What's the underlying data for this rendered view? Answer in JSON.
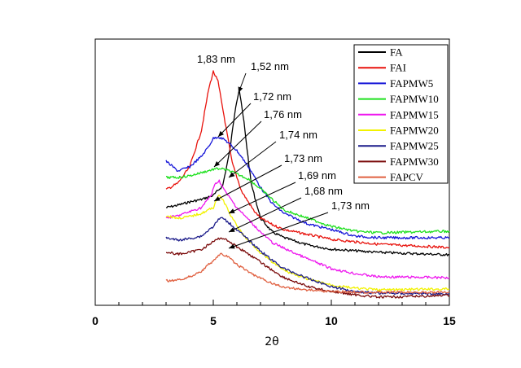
{
  "chart_data": {
    "type": "line",
    "title": "",
    "xlabel": "2θ",
    "ylabel": "",
    "xlim": [
      0,
      15
    ],
    "x_ticks": [
      "0",
      "5",
      "10",
      "15"
    ],
    "y_ticks_visible": false,
    "grid": false,
    "legend_position": "top-right",
    "series": [
      {
        "name": "FA",
        "color": "#000000",
        "points": [
          [
            3.0,
            255
          ],
          [
            3.5,
            252
          ],
          [
            4.0,
            248
          ],
          [
            4.5,
            245
          ],
          [
            5.0,
            240
          ],
          [
            5.4,
            228
          ],
          [
            5.7,
            185
          ],
          [
            5.95,
            130
          ],
          [
            6.1,
            110
          ],
          [
            6.3,
            150
          ],
          [
            6.6,
            225
          ],
          [
            7.0,
            268
          ],
          [
            7.5,
            285
          ],
          [
            8.0,
            292
          ],
          [
            9.0,
            301
          ],
          [
            10.0,
            306
          ],
          [
            12.0,
            310
          ],
          [
            15.0,
            313
          ]
        ]
      },
      {
        "name": "FAI",
        "color": "#e8120c",
        "points": [
          [
            3.0,
            233
          ],
          [
            3.5,
            225
          ],
          [
            4.0,
            205
          ],
          [
            4.5,
            160
          ],
          [
            4.8,
            110
          ],
          [
            5.0,
            88
          ],
          [
            5.2,
            100
          ],
          [
            5.5,
            150
          ],
          [
            5.8,
            200
          ],
          [
            6.2,
            235
          ],
          [
            6.7,
            258
          ],
          [
            7.0,
            268
          ],
          [
            7.5,
            276
          ],
          [
            8.0,
            282
          ],
          [
            9.0,
            288
          ],
          [
            10.0,
            294
          ],
          [
            12.0,
            300
          ],
          [
            15.0,
            304
          ]
        ]
      },
      {
        "name": "FAPMW5",
        "color": "#1515d8",
        "points": [
          [
            3.0,
            198
          ],
          [
            3.5,
            210
          ],
          [
            4.0,
            205
          ],
          [
            4.5,
            192
          ],
          [
            4.8,
            180
          ],
          [
            5.0,
            170
          ],
          [
            5.2,
            168
          ],
          [
            5.5,
            172
          ],
          [
            6.0,
            185
          ],
          [
            6.5,
            205
          ],
          [
            7.0,
            230
          ],
          [
            7.5,
            250
          ],
          [
            8.0,
            262
          ],
          [
            9.0,
            275
          ],
          [
            10.0,
            282
          ],
          [
            11.0,
            290
          ],
          [
            12.0,
            292
          ],
          [
            15.0,
            292
          ]
        ]
      },
      {
        "name": "FAPMW10",
        "color": "#1ee01e",
        "points": [
          [
            3.0,
            218
          ],
          [
            3.5,
            218
          ],
          [
            4.0,
            216
          ],
          [
            4.5,
            212
          ],
          [
            5.0,
            208
          ],
          [
            5.3,
            207
          ],
          [
            5.7,
            210
          ],
          [
            6.5,
            220
          ],
          [
            7.0,
            232
          ],
          [
            7.5,
            245
          ],
          [
            8.0,
            258
          ],
          [
            9.0,
            268
          ],
          [
            10.0,
            278
          ],
          [
            11.0,
            284
          ],
          [
            12.0,
            286
          ],
          [
            15.0,
            284
          ]
        ]
      },
      {
        "name": "FAPMW15",
        "color": "#ee16ee",
        "points": [
          [
            3.0,
            268
          ],
          [
            3.5,
            265
          ],
          [
            4.0,
            260
          ],
          [
            4.5,
            255
          ],
          [
            4.9,
            240
          ],
          [
            5.1,
            225
          ],
          [
            5.25,
            222
          ],
          [
            5.5,
            235
          ],
          [
            6.0,
            255
          ],
          [
            6.5,
            270
          ],
          [
            7.0,
            285
          ],
          [
            7.5,
            298
          ],
          [
            8.0,
            305
          ],
          [
            9.0,
            318
          ],
          [
            10.0,
            330
          ],
          [
            11.0,
            336
          ],
          [
            12.0,
            340
          ],
          [
            15.0,
            341
          ]
        ]
      },
      {
        "name": "FAPMW20",
        "color": "#f2f200",
        "points": [
          [
            3.0,
            265
          ],
          [
            3.5,
            268
          ],
          [
            4.0,
            266
          ],
          [
            4.5,
            262
          ],
          [
            5.0,
            255
          ],
          [
            5.2,
            240
          ],
          [
            5.4,
            245
          ],
          [
            5.8,
            268
          ],
          [
            6.3,
            290
          ],
          [
            7.0,
            310
          ],
          [
            7.5,
            322
          ],
          [
            8.0,
            332
          ],
          [
            9.0,
            343
          ],
          [
            10.0,
            350
          ],
          [
            11.0,
            354
          ],
          [
            12.0,
            356
          ],
          [
            15.0,
            355
          ]
        ]
      },
      {
        "name": "FAPMW25",
        "color": "#1c1c8a",
        "points": [
          [
            3.0,
            292
          ],
          [
            3.5,
            295
          ],
          [
            4.0,
            293
          ],
          [
            4.5,
            290
          ],
          [
            5.0,
            278
          ],
          [
            5.3,
            267
          ],
          [
            5.6,
            272
          ],
          [
            6.0,
            282
          ],
          [
            6.5,
            295
          ],
          [
            7.0,
            308
          ],
          [
            7.5,
            320
          ],
          [
            8.0,
            330
          ],
          [
            9.0,
            342
          ],
          [
            10.0,
            352
          ],
          [
            11.0,
            358
          ],
          [
            12.0,
            360
          ],
          [
            15.0,
            361
          ]
        ]
      },
      {
        "name": "FAPMW30",
        "color": "#7a0a0a",
        "points": [
          [
            3.0,
            310
          ],
          [
            3.5,
            312
          ],
          [
            4.0,
            310
          ],
          [
            4.5,
            306
          ],
          [
            5.0,
            297
          ],
          [
            5.3,
            292
          ],
          [
            5.6,
            295
          ],
          [
            6.0,
            303
          ],
          [
            6.5,
            312
          ],
          [
            7.0,
            322
          ],
          [
            7.5,
            332
          ],
          [
            8.0,
            341
          ],
          [
            9.0,
            352
          ],
          [
            10.0,
            358
          ],
          [
            11.0,
            362
          ],
          [
            12.0,
            365
          ],
          [
            15.0,
            363
          ]
        ]
      },
      {
        "name": "FAPCV",
        "color": "#e06040",
        "points": [
          [
            3.0,
            345
          ],
          [
            3.5,
            344
          ],
          [
            4.0,
            340
          ],
          [
            4.5,
            333
          ],
          [
            5.0,
            320
          ],
          [
            5.3,
            312
          ],
          [
            5.6,
            315
          ],
          [
            6.0,
            325
          ],
          [
            6.5,
            334
          ],
          [
            7.0,
            342
          ],
          [
            7.5,
            348
          ],
          [
            8.0,
            353
          ],
          [
            9.0,
            356
          ],
          [
            10.0,
            358
          ],
          [
            12.0,
            359
          ],
          [
            15.0,
            359
          ]
        ]
      }
    ],
    "annotations": [
      {
        "text": "1,83 nm",
        "color": "#000000"
      },
      {
        "text": "1,52 nm",
        "color": "#000000"
      },
      {
        "text": "1,72 nm",
        "color": "#000000"
      },
      {
        "text": "1,76 nm",
        "color": "#000000"
      },
      {
        "text": "1,74 nm",
        "color": "#000000"
      },
      {
        "text": "1,73 nm",
        "color": "#000000"
      },
      {
        "text": "1,69 nm",
        "color": "#000000"
      },
      {
        "text": "1,68 nm",
        "color": "#000000"
      },
      {
        "text": "1,73 nm",
        "color": "#000000"
      }
    ]
  }
}
